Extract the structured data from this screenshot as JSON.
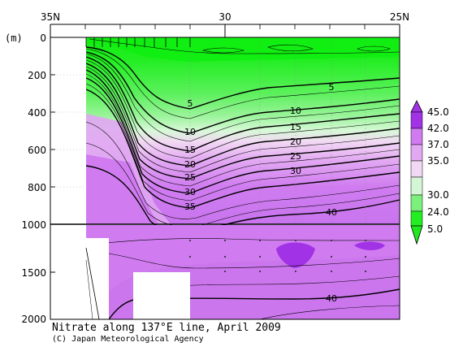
{
  "chart_data": {
    "type": "contour",
    "title": "Nitrate along 137°E line, April 2009",
    "credit": "(C) Japan Meteorological Agency",
    "y_unit_label": "(m)",
    "x_top_ticks": [
      {
        "value": 35,
        "label": "35N"
      },
      {
        "value": 30,
        "label": "30"
      },
      {
        "value": 25,
        "label": "25N"
      }
    ],
    "xlim": [
      35,
      25
    ],
    "y_ticks_upper": [
      0,
      200,
      400,
      600,
      800,
      1000
    ],
    "y_ticks_lower": [
      1500,
      2000
    ],
    "ylim_upper": [
      0,
      1000
    ],
    "ylim_lower": [
      1000,
      2000
    ],
    "y_tick_labels": [
      "0",
      "200",
      "400",
      "600",
      "800",
      "1000",
      "1500",
      "2000"
    ],
    "station_latitudes": [
      34,
      33.6,
      33.3,
      33.0,
      32.8,
      32.5,
      32.3,
      32.0,
      31.5,
      31.0,
      30.0,
      29.0,
      28.0,
      27.0,
      26.0,
      25.0
    ],
    "contour_levels": [
      5,
      10,
      15,
      20,
      25,
      30,
      35,
      40
    ],
    "contour_labels": [
      {
        "text": "5",
        "lat": 31.0,
        "depth": 290
      },
      {
        "text": "5",
        "lat": 27.0,
        "depth": 240
      },
      {
        "text": "10",
        "lat": 31.0,
        "depth": 470
      },
      {
        "text": "10",
        "lat": 28.0,
        "depth": 390
      },
      {
        "text": "15",
        "lat": 31.0,
        "depth": 600
      },
      {
        "text": "15",
        "lat": 28.0,
        "depth": 460
      },
      {
        "text": "20",
        "lat": 31.0,
        "depth": 670
      },
      {
        "text": "20",
        "lat": 28.0,
        "depth": 540
      },
      {
        "text": "25",
        "lat": 31.0,
        "depth": 740
      },
      {
        "text": "25",
        "lat": 28.0,
        "depth": 610
      },
      {
        "text": "30",
        "lat": 31.0,
        "depth": 810
      },
      {
        "text": "30",
        "lat": 28.0,
        "depth": 690
      },
      {
        "text": "35",
        "lat": 31.0,
        "depth": 890
      },
      {
        "text": "40",
        "lat": 27.0,
        "depth": 920
      },
      {
        "text": "40",
        "lat": 27.0,
        "depth": 1820
      }
    ],
    "legend": {
      "labels": [
        "45.0",
        "42.0",
        "37.0",
        "35.0",
        "30.0",
        "24.0",
        "5.0"
      ],
      "colors": [
        "#a232e6",
        "#d07cf0",
        "#e2a8f2",
        "#f2d8f4",
        "#d4f6d4",
        "#7cf07c",
        "#22ee22"
      ],
      "max_arrow_color": "#a232e6",
      "min_arrow_color": "#1ee81e"
    }
  }
}
